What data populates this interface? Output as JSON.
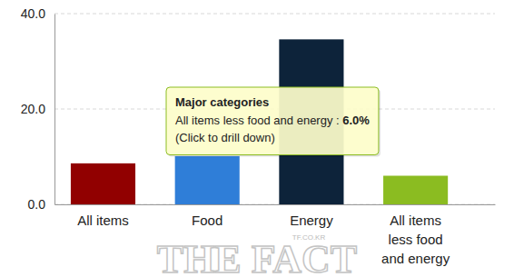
{
  "chart_data": {
    "type": "bar",
    "categories": [
      "All items",
      "Food",
      "Energy",
      "All items less food and energy"
    ],
    "values": [
      8.6,
      10.1,
      34.6,
      6.0
    ],
    "colors": [
      "#910000",
      "#2f7ed8",
      "#0d233a",
      "#8bbc21"
    ],
    "ylim": [
      0,
      40
    ],
    "yticks": [
      {
        "value": 0,
        "label": "0.0"
      },
      {
        "value": 20,
        "label": "20.0"
      },
      {
        "value": 40,
        "label": "40.0"
      }
    ],
    "grid": true,
    "tooltip": {
      "lines": [
        "Major categories",
        "All items less food and energy : 6.0%",
        "(Click to drill down)"
      ]
    },
    "annotations": [
      {
        "text": "THE FACT"
      },
      {
        "text": "TF.CO.KR"
      }
    ]
  }
}
